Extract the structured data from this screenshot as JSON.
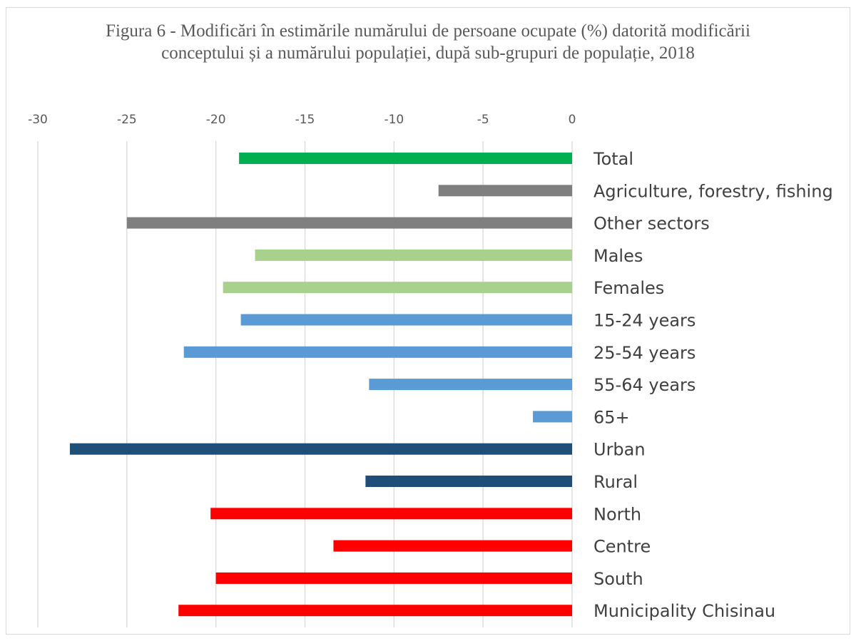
{
  "chart_data": {
    "type": "bar",
    "orientation": "horizontal",
    "title": "Figura 6 - Modificări în estimările numărului de persoane ocupate (%) datorită modificării conceptului și a numărului populației, după sub-grupuri de populație, 2018",
    "xlabel": "",
    "ylabel": "",
    "xlim": [
      -30,
      0
    ],
    "ticks": [
      -30,
      -25,
      -20,
      -15,
      -10,
      -5,
      0
    ],
    "tick_labels": [
      "-30",
      "-25",
      "-20",
      "-15",
      "-10",
      "-5",
      "0"
    ],
    "x_axis_position": "top",
    "grid": true,
    "legend": "none",
    "categories": [
      "Total",
      "Agriculture, forestry, fishing",
      "Other sectors",
      "Males",
      "Females",
      "15-24 years",
      "25-54 years",
      "55-64 years",
      "65+",
      "Urban",
      "Rural",
      "North",
      "Centre",
      "South",
      "Municipality Chisinau"
    ],
    "values": [
      -18.7,
      -7.5,
      -25.0,
      -17.8,
      -19.6,
      -18.6,
      -21.8,
      -11.4,
      -2.2,
      -28.2,
      -11.6,
      -20.3,
      -13.4,
      -20.0,
      -22.1
    ],
    "colors": [
      "#00b050",
      "#7f7f7f",
      "#7f7f7f",
      "#a9d18e",
      "#a9d18e",
      "#5b9bd5",
      "#5b9bd5",
      "#5b9bd5",
      "#5b9bd5",
      "#1f4e79",
      "#1f4e79",
      "#ff0000",
      "#ff0000",
      "#ff0000",
      "#ff0000"
    ]
  }
}
